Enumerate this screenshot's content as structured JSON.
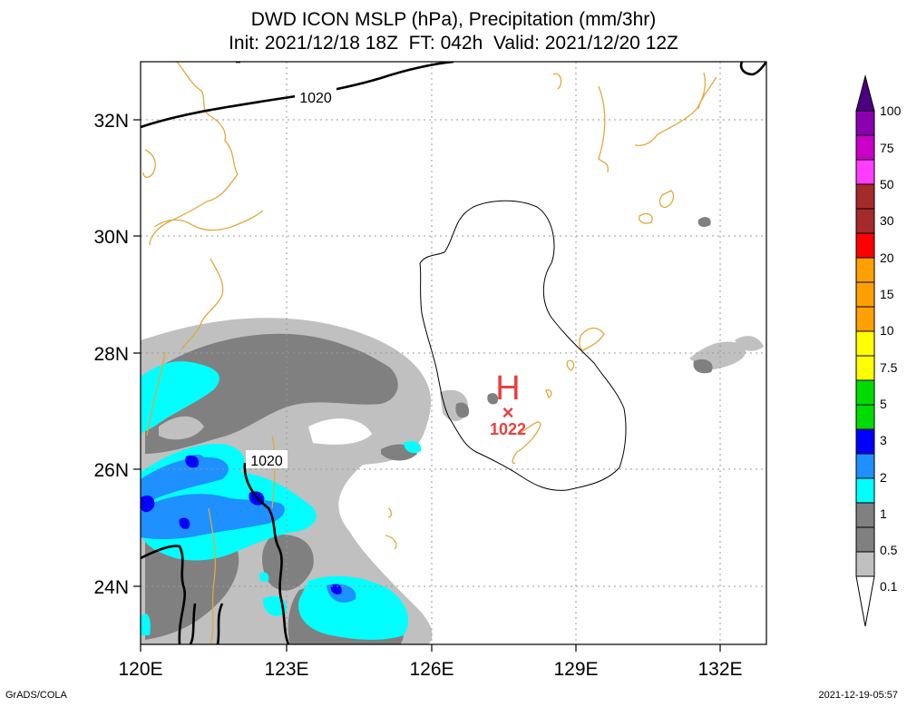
{
  "title": {
    "line1": "DWD ICON MSLP (hPa), Precipitation (mm/3hr)",
    "line2": "Init: 2021/12/18 18Z  FT: 042h  Valid: 2021/12/20 12Z"
  },
  "footer": {
    "left": "GrADS/COLA",
    "right": "2021-12-19-05:57"
  },
  "map": {
    "lon_labels": [
      "120E",
      "123E",
      "126E",
      "129E",
      "132E"
    ],
    "lat_labels": [
      "32N",
      "30N",
      "28N",
      "26N",
      "24N"
    ],
    "lon_range": [
      120,
      133
    ],
    "lat_range": [
      23,
      33
    ],
    "gridlines": "dotted",
    "high_center": {
      "symbol": "H",
      "marker": "×",
      "pressure": "1022",
      "lon": 127.6,
      "lat": 27.0,
      "color": "#e84040"
    },
    "isobar_labels": [
      "1020",
      "1020"
    ],
    "coastline_color": "#e0a83a"
  },
  "colorbar": {
    "levels": [
      "100",
      "75",
      "50",
      "30",
      "20",
      "15",
      "10",
      "7.5",
      "5",
      "3",
      "2",
      "1",
      "0.5",
      "0.1"
    ],
    "colors": [
      "#4b0082",
      "#8a00b0",
      "#c800c8",
      "#ff3cff",
      "#a52a2a",
      "#ff0000",
      "#ffa000",
      "#ffd700",
      "#ffff00",
      "#00dc00",
      "#0000ff",
      "#1e90ff",
      "#00ffff",
      "#808080",
      "#c0c0c0"
    ],
    "end_colors": {
      "top": "#4b0082",
      "bottom": "#ffffff"
    }
  }
}
